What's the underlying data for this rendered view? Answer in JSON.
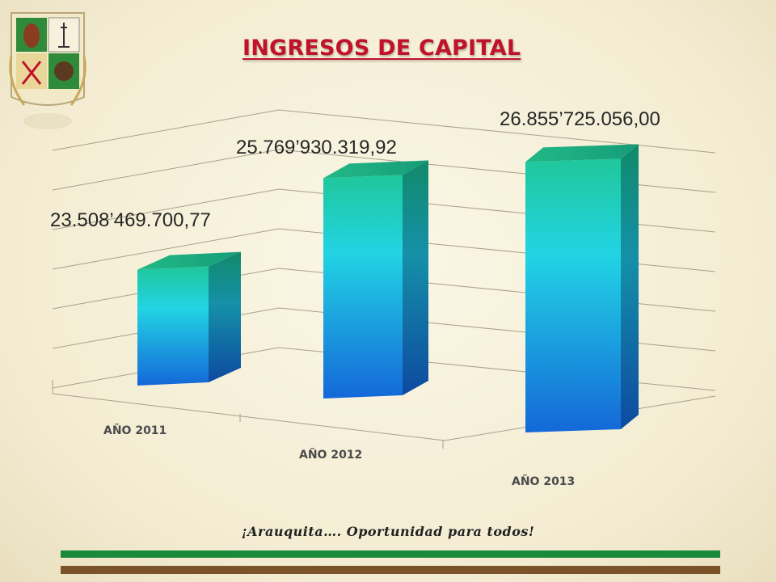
{
  "title": "INGRESOS DE CAPITAL",
  "slogan": "¡Arauquita…. Oportunidad para todos!",
  "colors": {
    "title": "#c0122a",
    "bar_top": "#1fbf8c",
    "bar_mid": "#22d0e6",
    "bar_bottom": "#1470d8",
    "line_green": "#1a8a3a",
    "line_brown": "#7a5428"
  },
  "chart_data": {
    "type": "bar",
    "title": "INGRESOS DE CAPITAL",
    "categories": [
      "AÑO 2011",
      "AÑO 2012",
      "AÑO 2013"
    ],
    "values": [
      23508469700.77,
      25769930319.92,
      26855725056.0
    ],
    "value_labels": [
      "23.508’469.700,77",
      "25.769’930.319,92",
      "26.855’725.056,00"
    ],
    "style": "3d-column",
    "grid": true,
    "legend": "none"
  }
}
